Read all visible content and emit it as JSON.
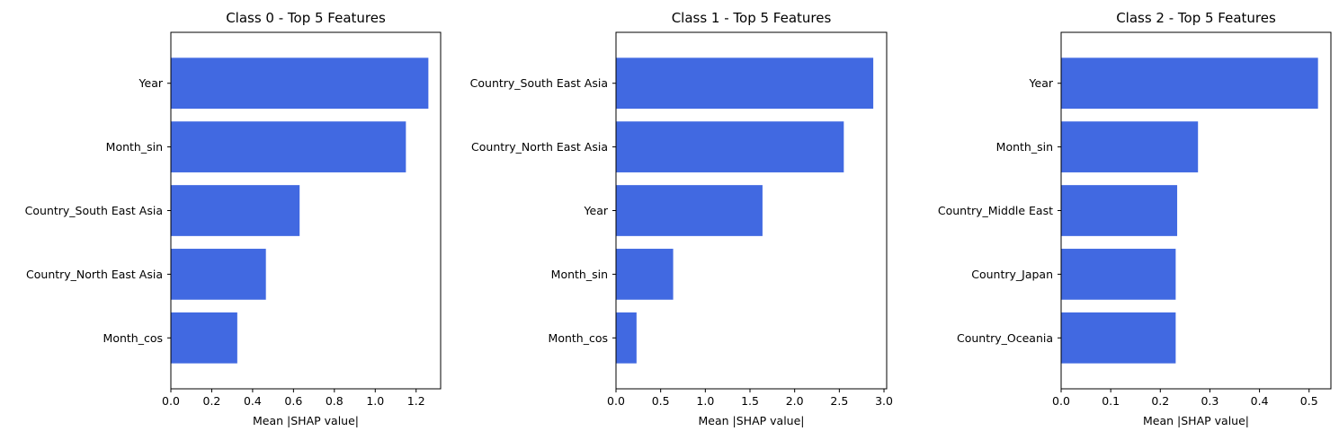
{
  "colors": {
    "bar": "#4169e1",
    "axis": "#000000",
    "background": "#ffffff"
  },
  "chart_data": [
    {
      "type": "bar",
      "orientation": "horizontal",
      "title": "Class 0 - Top 5 Features",
      "xlabel": "Mean |SHAP value|",
      "ylabel": "",
      "categories": [
        "Year",
        "Month_sin",
        "Country_South East Asia",
        "Country_North East Asia",
        "Month_cos"
      ],
      "values": [
        1.26,
        1.15,
        0.63,
        0.465,
        0.325
      ],
      "xlim": [
        0,
        1.32
      ],
      "xticks": [
        0.0,
        0.2,
        0.4,
        0.6,
        0.8,
        1.0,
        1.2
      ],
      "xtick_labels": [
        "0.0",
        "0.2",
        "0.4",
        "0.6",
        "0.8",
        "1.0",
        "1.2"
      ],
      "grid": false,
      "legend": "none"
    },
    {
      "type": "bar",
      "orientation": "horizontal",
      "title": "Class 1 - Top 5 Features",
      "xlabel": "Mean |SHAP value|",
      "ylabel": "",
      "categories": [
        "Country_South East Asia",
        "Country_North East Asia",
        "Year",
        "Month_sin",
        "Month_cos"
      ],
      "values": [
        2.88,
        2.55,
        1.64,
        0.64,
        0.23
      ],
      "xlim": [
        0,
        3.03
      ],
      "xticks": [
        0.0,
        0.5,
        1.0,
        1.5,
        2.0,
        2.5,
        3.0
      ],
      "xtick_labels": [
        "0.0",
        "0.5",
        "1.0",
        "1.5",
        "2.0",
        "2.5",
        "3.0"
      ],
      "grid": false,
      "legend": "none"
    },
    {
      "type": "bar",
      "orientation": "horizontal",
      "title": "Class 2 - Top 5 Features",
      "xlabel": "Mean |SHAP value|",
      "ylabel": "",
      "categories": [
        "Year",
        "Month_sin",
        "Country_Middle East",
        "Country_Japan",
        "Country_Oceania"
      ],
      "values": [
        0.518,
        0.276,
        0.234,
        0.231,
        0.231
      ],
      "xlim": [
        0,
        0.544
      ],
      "xticks": [
        0.0,
        0.1,
        0.2,
        0.3,
        0.4,
        0.5
      ],
      "xtick_labels": [
        "0.0",
        "0.1",
        "0.2",
        "0.3",
        "0.4",
        "0.5"
      ],
      "grid": false,
      "legend": "none"
    }
  ]
}
